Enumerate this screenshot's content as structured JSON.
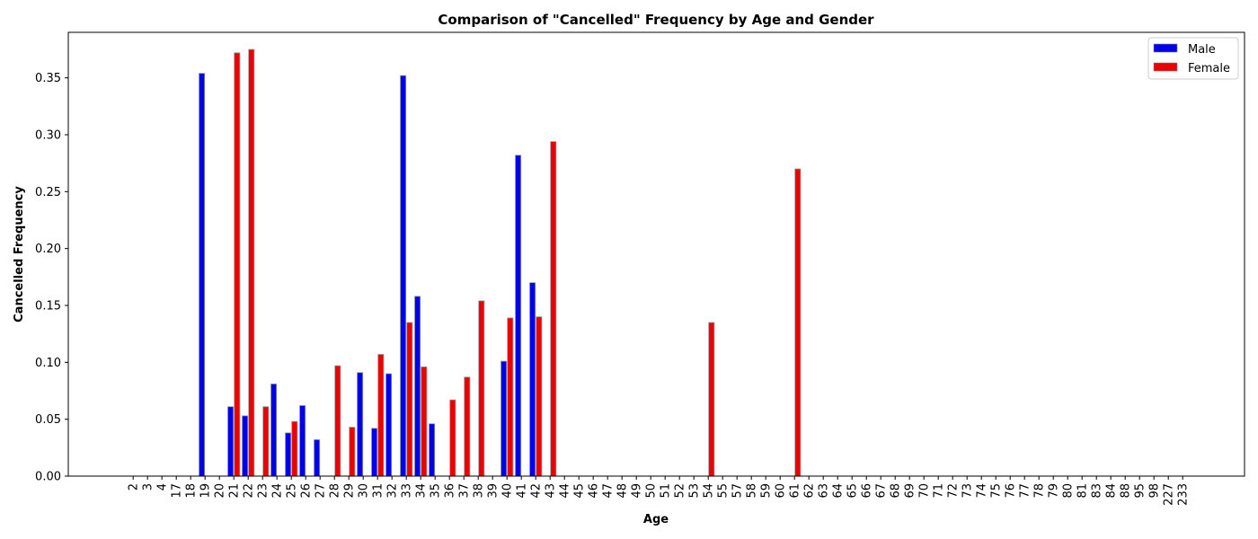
{
  "chart_data": {
    "type": "bar",
    "title": "Comparison of \"Cancelled\" Frequency by Age and Gender",
    "xlabel": "Age",
    "ylabel": "Cancelled Frequency",
    "ylim": [
      0,
      0.39
    ],
    "yticks": [
      "0.00",
      "0.05",
      "0.10",
      "0.15",
      "0.20",
      "0.25",
      "0.30",
      "0.35"
    ],
    "legend_position": "top-right",
    "categories": [
      "2",
      "3",
      "4",
      "17",
      "18",
      "19",
      "20",
      "21",
      "22",
      "23",
      "24",
      "25",
      "26",
      "27",
      "28",
      "29",
      "30",
      "31",
      "32",
      "33",
      "34",
      "35",
      "36",
      "37",
      "38",
      "39",
      "40",
      "41",
      "42",
      "43",
      "44",
      "45",
      "46",
      "47",
      "48",
      "49",
      "50",
      "51",
      "52",
      "53",
      "54",
      "55",
      "57",
      "58",
      "59",
      "60",
      "61",
      "62",
      "63",
      "64",
      "65",
      "66",
      "67",
      "68",
      "69",
      "70",
      "71",
      "72",
      "73",
      "74",
      "75",
      "76",
      "77",
      "78",
      "79",
      "80",
      "81",
      "83",
      "84",
      "88",
      "95",
      "98",
      "227",
      "233"
    ],
    "series": [
      {
        "name": "Male",
        "color": "#0000ee",
        "values": [
          0,
          0,
          0,
          0,
          0,
          0.354,
          0,
          0.061,
          0.053,
          0,
          0.081,
          0.038,
          0.062,
          0.032,
          0,
          0,
          0.091,
          0.042,
          0.09,
          0.352,
          0.158,
          0.046,
          0,
          0,
          0,
          0,
          0.101,
          0.282,
          0.17,
          0,
          0,
          0,
          0,
          0,
          0,
          0,
          0,
          0,
          0,
          0,
          0,
          0,
          0,
          0,
          0,
          0,
          0,
          0,
          0,
          0,
          0,
          0,
          0,
          0,
          0,
          0,
          0,
          0,
          0,
          0,
          0,
          0,
          0,
          0,
          0,
          0,
          0,
          0,
          0,
          0,
          0,
          0,
          0,
          0
        ]
      },
      {
        "name": "Female",
        "color": "#ee0000",
        "values": [
          0,
          0,
          0,
          0,
          0,
          0,
          0,
          0.372,
          0.375,
          0.061,
          0,
          0.048,
          0,
          0,
          0.097,
          0.043,
          0,
          0.107,
          0,
          0.135,
          0.096,
          0,
          0.067,
          0.087,
          0.154,
          0,
          0.139,
          0,
          0.14,
          0.294,
          0,
          0,
          0,
          0,
          0,
          0,
          0,
          0,
          0,
          0,
          0.135,
          0,
          0,
          0,
          0,
          0,
          0.27,
          0,
          0,
          0,
          0,
          0,
          0,
          0,
          0,
          0,
          0,
          0,
          0,
          0,
          0,
          0,
          0,
          0,
          0,
          0,
          0,
          0,
          0,
          0,
          0,
          0,
          0,
          0
        ]
      }
    ]
  }
}
